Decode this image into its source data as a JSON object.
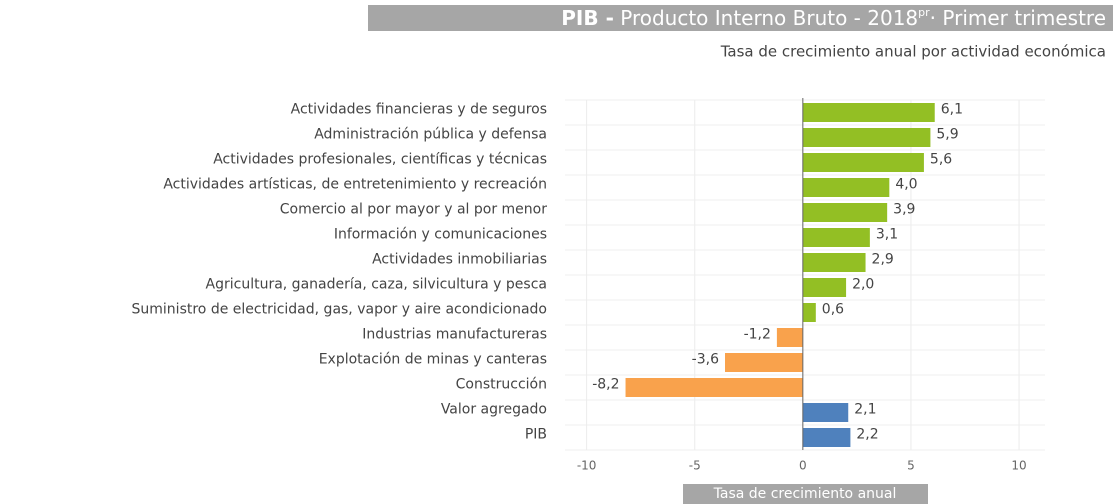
{
  "chart_data": {
    "type": "barh",
    "title": {
      "bold": "PIB -",
      "main": "Producto Interno Bruto - 2018",
      "sup": "pr",
      "rest": "· Primer trimestre"
    },
    "subtitle": "Tasa de crecimiento anual por actividad económica",
    "x_label": "Tasa de crecimiento anual",
    "categories": [
      "Actividades financieras y de seguros",
      "Administración pública y defensa",
      "Actividades profesionales, científicas y técnicas",
      "Actividades artísticas, de entretenimiento y recreación",
      "Comercio al por mayor y al por menor",
      "Información y comunicaciones",
      "Actividades inmobiliarias",
      "Agricultura, ganadería, caza, silvicultura y pesca",
      "Suministro de electricidad, gas, vapor y aire acondicionado",
      "Industrias manufactureras",
      "Explotación de minas y canteras",
      "Construcción",
      "Valor agregado",
      "PIB"
    ],
    "values": [
      6.1,
      5.9,
      5.6,
      4.0,
      3.9,
      3.1,
      2.9,
      2.0,
      0.6,
      -1.2,
      -3.6,
      -8.2,
      2.1,
      2.2
    ],
    "value_labels": [
      "6,1",
      "5,9",
      "5,6",
      "4,0",
      "3,9",
      "3,1",
      "2,9",
      "2,0",
      "0,6",
      "-1,2",
      "-3,6",
      "-8,2",
      "2,1",
      "2,2"
    ],
    "colors": [
      "#93bf24",
      "#93bf24",
      "#93bf24",
      "#93bf24",
      "#93bf24",
      "#93bf24",
      "#93bf24",
      "#93bf24",
      "#93bf24",
      "#f9a24c",
      "#f9a24c",
      "#f9a24c",
      "#4f81bd",
      "#4f81bd"
    ],
    "xlim": [
      -11,
      11.2
    ],
    "xticks": [
      -10,
      -5,
      0,
      5,
      10
    ],
    "grid": true
  }
}
